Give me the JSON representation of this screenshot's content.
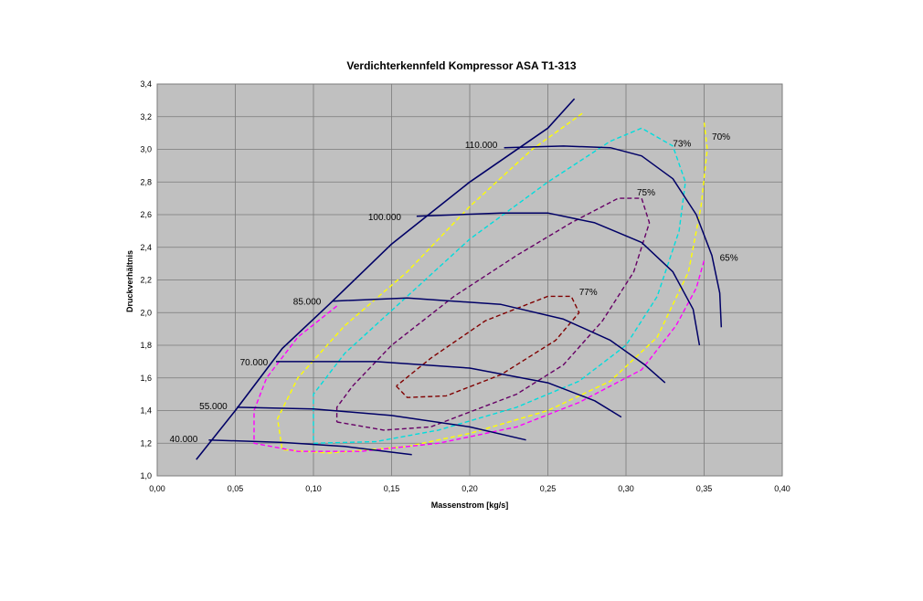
{
  "chart_data": {
    "type": "line",
    "title": "Verdichterkennfeld Kompressor ASA T1-313",
    "xlabel": "Massenstrom [kg/s]",
    "ylabel": "Druckverhältnis",
    "xlim": [
      0.0,
      0.4
    ],
    "ylim": [
      1.0,
      3.4
    ],
    "x_ticks": [
      "0,00",
      "0,05",
      "0,10",
      "0,15",
      "0,20",
      "0,25",
      "0,30",
      "0,35",
      "0,40"
    ],
    "y_ticks": [
      "1,0",
      "1,2",
      "1,4",
      "1,6",
      "1,8",
      "2,0",
      "2,2",
      "2,4",
      "2,6",
      "2,8",
      "3,0",
      "3,2",
      "3,4"
    ],
    "grid": true,
    "plot_background": "#c0c0c0",
    "surge_line": {
      "color": "#000066",
      "points": [
        [
          0.025,
          1.1
        ],
        [
          0.05,
          1.4
        ],
        [
          0.08,
          1.78
        ],
        [
          0.11,
          2.05
        ],
        [
          0.15,
          2.42
        ],
        [
          0.2,
          2.8
        ],
        [
          0.25,
          3.13
        ],
        [
          0.267,
          3.31
        ]
      ]
    },
    "speed_lines": [
      {
        "label": "40.000",
        "color": "#000066",
        "points": [
          [
            0.033,
            1.22
          ],
          [
            0.08,
            1.205
          ],
          [
            0.12,
            1.18
          ],
          [
            0.163,
            1.13
          ]
        ]
      },
      {
        "label": "55.000",
        "color": "#000066",
        "points": [
          [
            0.051,
            1.42
          ],
          [
            0.1,
            1.41
          ],
          [
            0.15,
            1.37
          ],
          [
            0.2,
            1.3
          ],
          [
            0.236,
            1.22
          ]
        ]
      },
      {
        "label": "70.000",
        "color": "#000066",
        "points": [
          [
            0.076,
            1.7
          ],
          [
            0.14,
            1.7
          ],
          [
            0.2,
            1.66
          ],
          [
            0.25,
            1.57
          ],
          [
            0.28,
            1.46
          ],
          [
            0.297,
            1.36
          ]
        ]
      },
      {
        "label": "85.000",
        "color": "#000066",
        "points": [
          [
            0.112,
            2.07
          ],
          [
            0.16,
            2.09
          ],
          [
            0.22,
            2.05
          ],
          [
            0.26,
            1.96
          ],
          [
            0.29,
            1.83
          ],
          [
            0.312,
            1.68
          ],
          [
            0.325,
            1.57
          ]
        ]
      },
      {
        "label": "100.000",
        "color": "#000066",
        "points": [
          [
            0.166,
            2.59
          ],
          [
            0.22,
            2.61
          ],
          [
            0.25,
            2.61
          ],
          [
            0.28,
            2.55
          ],
          [
            0.31,
            2.43
          ],
          [
            0.33,
            2.25
          ],
          [
            0.343,
            2.02
          ],
          [
            0.347,
            1.8
          ]
        ]
      },
      {
        "label": "110.000",
        "color": "#000066",
        "points": [
          [
            0.222,
            3.01
          ],
          [
            0.26,
            3.02
          ],
          [
            0.29,
            3.01
          ],
          [
            0.31,
            2.96
          ],
          [
            0.33,
            2.82
          ],
          [
            0.345,
            2.6
          ],
          [
            0.355,
            2.35
          ],
          [
            0.36,
            2.12
          ],
          [
            0.361,
            1.91
          ]
        ]
      }
    ],
    "efficiency_contours": [
      {
        "label": "77%",
        "color": "#800000",
        "points": [
          [
            0.153,
            1.55
          ],
          [
            0.16,
            1.48
          ],
          [
            0.185,
            1.49
          ],
          [
            0.22,
            1.62
          ],
          [
            0.255,
            1.83
          ],
          [
            0.27,
            2.0
          ],
          [
            0.265,
            2.1
          ],
          [
            0.25,
            2.1
          ],
          [
            0.21,
            1.95
          ],
          [
            0.175,
            1.72
          ],
          [
            0.153,
            1.55
          ]
        ]
      },
      {
        "label": "75%",
        "color": "#660066",
        "points": [
          [
            0.115,
            1.33
          ],
          [
            0.145,
            1.28
          ],
          [
            0.175,
            1.3
          ],
          [
            0.23,
            1.5
          ],
          [
            0.26,
            1.68
          ],
          [
            0.285,
            1.95
          ],
          [
            0.305,
            2.25
          ],
          [
            0.315,
            2.55
          ],
          [
            0.31,
            2.7
          ],
          [
            0.295,
            2.7
          ],
          [
            0.265,
            2.55
          ],
          [
            0.23,
            2.35
          ],
          [
            0.19,
            2.1
          ],
          [
            0.15,
            1.8
          ],
          [
            0.125,
            1.55
          ],
          [
            0.115,
            1.42
          ],
          [
            0.115,
            1.33
          ]
        ]
      },
      {
        "label": "73%",
        "color": "#00dddd",
        "points": [
          [
            0.1,
            1.2
          ],
          [
            0.14,
            1.21
          ],
          [
            0.18,
            1.28
          ],
          [
            0.23,
            1.42
          ],
          [
            0.27,
            1.58
          ],
          [
            0.3,
            1.8
          ],
          [
            0.32,
            2.1
          ],
          [
            0.334,
            2.5
          ],
          [
            0.338,
            2.8
          ],
          [
            0.33,
            3.02
          ],
          [
            0.31,
            3.13
          ],
          [
            0.29,
            3.05
          ],
          [
            0.25,
            2.8
          ],
          [
            0.2,
            2.45
          ],
          [
            0.16,
            2.1
          ],
          [
            0.12,
            1.75
          ],
          [
            0.1,
            1.5
          ],
          [
            0.1,
            1.2
          ]
        ]
      },
      {
        "label": "70%",
        "color": "#ffff00",
        "points": [
          [
            0.272,
            3.22
          ],
          [
            0.24,
            3.0
          ],
          [
            0.2,
            2.65
          ],
          [
            0.16,
            2.25
          ],
          [
            0.12,
            1.92
          ],
          [
            0.09,
            1.6
          ],
          [
            0.077,
            1.35
          ],
          [
            0.08,
            1.16
          ],
          [
            0.11,
            1.14
          ],
          [
            0.16,
            1.18
          ],
          [
            0.2,
            1.26
          ],
          [
            0.25,
            1.4
          ],
          [
            0.29,
            1.58
          ],
          [
            0.32,
            1.85
          ],
          [
            0.34,
            2.25
          ],
          [
            0.348,
            2.65
          ],
          [
            0.352,
            3.0
          ],
          [
            0.35,
            3.17
          ]
        ]
      },
      {
        "label": "65%",
        "color": "#ff00ff",
        "points": [
          [
            0.115,
            2.04
          ],
          [
            0.09,
            1.85
          ],
          [
            0.07,
            1.6
          ],
          [
            0.062,
            1.4
          ],
          [
            0.062,
            1.2
          ],
          [
            0.09,
            1.15
          ],
          [
            0.13,
            1.15
          ],
          [
            0.18,
            1.2
          ],
          [
            0.23,
            1.3
          ],
          [
            0.27,
            1.45
          ],
          [
            0.31,
            1.65
          ],
          [
            0.332,
            1.92
          ],
          [
            0.345,
            2.15
          ],
          [
            0.35,
            2.32
          ]
        ]
      }
    ],
    "annotations": [
      {
        "text": "110.000",
        "x": 0.197,
        "y": 3.03
      },
      {
        "text": "100.000",
        "x": 0.135,
        "y": 2.59
      },
      {
        "text": "85.000",
        "x": 0.087,
        "y": 2.07
      },
      {
        "text": "70.000",
        "x": 0.053,
        "y": 1.7
      },
      {
        "text": "55.000",
        "x": 0.027,
        "y": 1.43
      },
      {
        "text": "40.000",
        "x": 0.008,
        "y": 1.23
      },
      {
        "text": "77%",
        "x": 0.27,
        "y": 2.13
      },
      {
        "text": "75%",
        "x": 0.307,
        "y": 2.74
      },
      {
        "text": "73%",
        "x": 0.33,
        "y": 3.04
      },
      {
        "text": "70%",
        "x": 0.355,
        "y": 3.08
      },
      {
        "text": "65%",
        "x": 0.36,
        "y": 2.34
      }
    ]
  }
}
